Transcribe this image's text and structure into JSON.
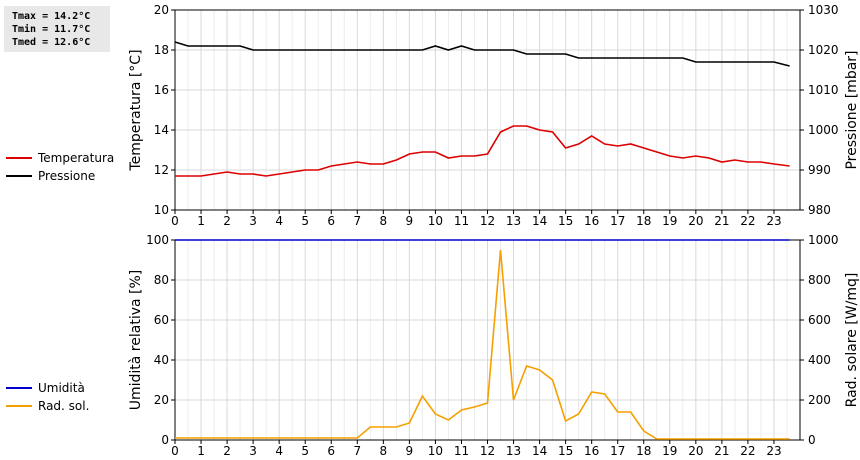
{
  "stats": {
    "tmax": "Tmax = 14.2°C",
    "tmin": "Tmin = 11.7°C",
    "tmed": "Tmed = 12.6°C"
  },
  "colors": {
    "temperature": "#dd0000",
    "pressure": "#000000",
    "humidity": "#0000cc",
    "solar": "#f5a000",
    "grid": "#d8d8d8"
  },
  "chart_data": [
    {
      "type": "line",
      "xlim": [
        0,
        24
      ],
      "xticks": [
        "0",
        "1",
        "2",
        "3",
        "4",
        "5",
        "6",
        "7",
        "8",
        "9",
        "10",
        "11",
        "12",
        "13",
        "14",
        "15",
        "16",
        "17",
        "18",
        "19",
        "20",
        "21",
        "22",
        "23"
      ],
      "ylabel": "Temperatura [°C]",
      "ylim": [
        10,
        20
      ],
      "yticks": [
        "10",
        "12",
        "14",
        "16",
        "18",
        "20"
      ],
      "y2label": "Pressione [mbar]",
      "y2lim": [
        980,
        1030
      ],
      "y2ticks": [
        "980",
        "990",
        "1000",
        "1010",
        "1020",
        "1030"
      ],
      "grid": true,
      "legend_position": "left",
      "series": [
        {
          "name": "Temperatura",
          "axis": "left",
          "x": [
            0,
            0.5,
            1,
            1.5,
            2,
            2.5,
            3,
            3.5,
            4,
            4.5,
            5,
            5.5,
            6,
            6.5,
            7,
            7.5,
            8,
            8.5,
            9,
            9.5,
            10,
            10.5,
            11,
            11.5,
            12,
            12.5,
            13,
            13.5,
            14,
            14.5,
            15,
            15.5,
            16,
            16.5,
            17,
            17.5,
            18,
            18.5,
            19,
            19.5,
            20,
            20.5,
            21,
            21.5,
            22,
            22.5,
            23,
            23.6
          ],
          "y": [
            11.7,
            11.7,
            11.7,
            11.8,
            11.9,
            11.8,
            11.8,
            11.7,
            11.8,
            11.9,
            12.0,
            12.0,
            12.2,
            12.3,
            12.4,
            12.3,
            12.3,
            12.5,
            12.8,
            12.9,
            12.9,
            12.6,
            12.7,
            12.7,
            12.8,
            13.9,
            14.2,
            14.2,
            14.0,
            13.9,
            13.1,
            13.3,
            13.7,
            13.3,
            13.2,
            13.3,
            13.1,
            12.9,
            12.7,
            12.6,
            12.7,
            12.6,
            12.4,
            12.5,
            12.4,
            12.4,
            12.3,
            12.2
          ]
        },
        {
          "name": "Pressione",
          "axis": "right",
          "x": [
            0,
            0.5,
            1,
            1.5,
            2,
            2.5,
            3,
            3.5,
            4,
            4.5,
            5,
            5.5,
            6,
            6.5,
            7,
            7.5,
            8,
            8.5,
            9,
            9.5,
            10,
            10.5,
            11,
            11.5,
            12,
            12.5,
            13,
            13.5,
            14,
            14.5,
            15,
            15.5,
            16,
            16.5,
            17,
            17.5,
            18,
            18.5,
            19,
            19.5,
            20,
            20.5,
            21,
            21.5,
            22,
            22.5,
            23,
            23.6
          ],
          "y": [
            1022,
            1021,
            1021,
            1021,
            1021,
            1021,
            1020,
            1020,
            1020,
            1020,
            1020,
            1020,
            1020,
            1020,
            1020,
            1020,
            1020,
            1020,
            1020,
            1020,
            1021,
            1020,
            1021,
            1020,
            1020,
            1020,
            1020,
            1019,
            1019,
            1019,
            1019,
            1018,
            1018,
            1018,
            1018,
            1018,
            1018,
            1018,
            1018,
            1018,
            1017,
            1017,
            1017,
            1017,
            1017,
            1017,
            1017,
            1016
          ]
        }
      ]
    },
    {
      "type": "line",
      "xlim": [
        0,
        24
      ],
      "xticks": [
        "0",
        "1",
        "2",
        "3",
        "4",
        "5",
        "6",
        "7",
        "8",
        "9",
        "10",
        "11",
        "12",
        "13",
        "14",
        "15",
        "16",
        "17",
        "18",
        "19",
        "20",
        "21",
        "22",
        "23"
      ],
      "ylabel": "Umidità relativa [%]",
      "ylim": [
        0,
        100
      ],
      "yticks": [
        "0",
        "20",
        "40",
        "60",
        "80",
        "100"
      ],
      "y2label": "Rad. solare [W/mq]",
      "y2lim": [
        0,
        1000
      ],
      "y2ticks": [
        "0",
        "200",
        "400",
        "600",
        "800",
        "1000"
      ],
      "grid": true,
      "legend_position": "left",
      "series": [
        {
          "name": "Umidità",
          "axis": "left",
          "x": [
            0,
            23.6
          ],
          "y": [
            100,
            100
          ]
        },
        {
          "name": "Rad. sol.",
          "axis": "right",
          "x": [
            0,
            0.5,
            1,
            1.5,
            2,
            2.5,
            3,
            3.5,
            4,
            4.5,
            5,
            5.5,
            6,
            6.5,
            7,
            7.5,
            8,
            8.5,
            9,
            9.5,
            10,
            10.5,
            11,
            11.5,
            12,
            12.5,
            13,
            13.5,
            14,
            14.5,
            15,
            15.5,
            16,
            16.5,
            17,
            17.5,
            18,
            18.5,
            19,
            19.5,
            20,
            20.5,
            21,
            21.5,
            22,
            22.5,
            23,
            23.6
          ],
          "y": [
            10,
            10,
            10,
            10,
            10,
            10,
            10,
            10,
            10,
            10,
            10,
            10,
            10,
            10,
            10,
            65,
            65,
            65,
            85,
            220,
            130,
            100,
            150,
            165,
            185,
            950,
            200,
            370,
            350,
            300,
            95,
            130,
            240,
            230,
            140,
            140,
            45,
            5,
            5,
            5,
            5,
            5,
            5,
            5,
            5,
            5,
            5,
            5
          ]
        }
      ]
    }
  ]
}
